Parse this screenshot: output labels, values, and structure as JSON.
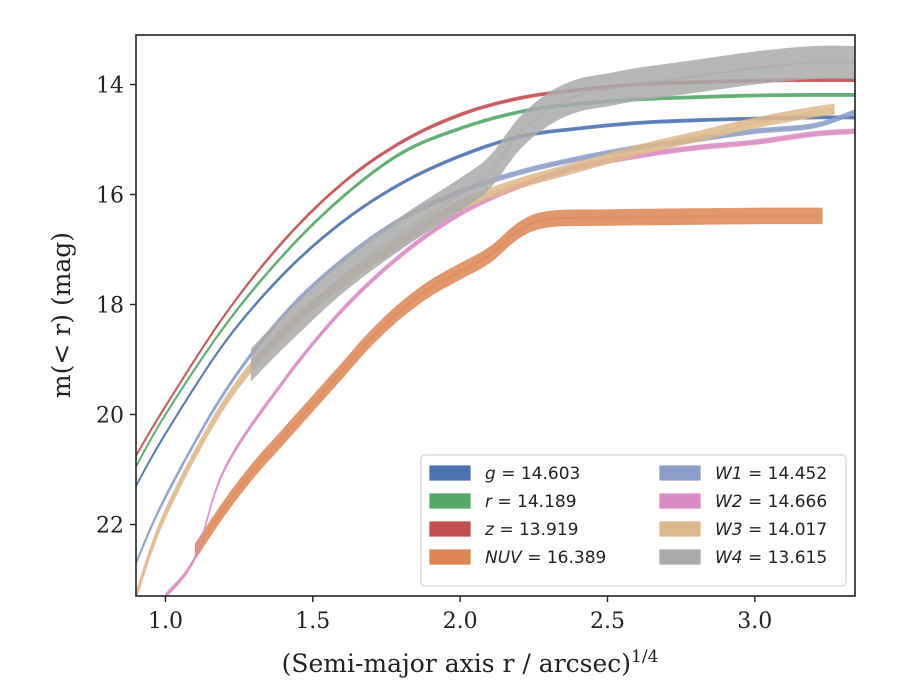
{
  "chart_data": {
    "type": "line",
    "xlabel": "(Semi-major axis r / arcsec)",
    "xlabel_exponent": "1/4",
    "ylabel": "m(< r) (mag)",
    "xlim": [
      0.9,
      3.34
    ],
    "ylim": [
      23.3,
      13.1
    ],
    "y_inverted": true,
    "x_ticks": [
      {
        "value": 1.0,
        "label": "1.0"
      },
      {
        "value": 1.5,
        "label": "1.5"
      },
      {
        "value": 2.0,
        "label": "2.0"
      },
      {
        "value": 2.5,
        "label": "2.5"
      },
      {
        "value": 3.0,
        "label": "3.0"
      }
    ],
    "y_ticks": [
      {
        "value": 14,
        "label": "14"
      },
      {
        "value": 16,
        "label": "16"
      },
      {
        "value": 18,
        "label": "18"
      },
      {
        "value": 20,
        "label": "20"
      },
      {
        "value": 22,
        "label": "22"
      }
    ],
    "grid": false,
    "legend_position": "lower-right",
    "series": [
      {
        "key": "g",
        "symbol": "g",
        "value": "14.603",
        "color": "#4c72b0",
        "band_width": 0.07,
        "x": [
          0.9,
          1.0,
          1.2,
          1.4,
          1.6,
          1.8,
          2.0,
          2.2,
          2.4,
          2.6,
          2.8,
          3.0,
          3.2,
          3.34
        ],
        "y": [
          21.3,
          20.35,
          18.7,
          17.45,
          16.5,
          15.8,
          15.3,
          14.95,
          14.8,
          14.7,
          14.65,
          14.62,
          14.6,
          14.6
        ]
      },
      {
        "key": "r",
        "symbol": "r",
        "value": "14.189",
        "color": "#55a868",
        "band_width": 0.07,
        "x": [
          0.9,
          1.0,
          1.2,
          1.4,
          1.6,
          1.8,
          2.0,
          2.2,
          2.4,
          2.6,
          2.8,
          3.0,
          3.2,
          3.34
        ],
        "y": [
          20.95,
          20.0,
          18.4,
          17.1,
          16.05,
          15.25,
          14.8,
          14.5,
          14.35,
          14.27,
          14.23,
          14.2,
          14.19,
          14.19
        ]
      },
      {
        "key": "z",
        "symbol": "z",
        "value": "13.919",
        "color": "#c44e52",
        "band_width": 0.07,
        "x": [
          0.9,
          1.0,
          1.2,
          1.4,
          1.6,
          1.8,
          2.0,
          2.2,
          2.4,
          2.6,
          2.8,
          3.0,
          3.2,
          3.34
        ],
        "y": [
          20.75,
          19.85,
          18.2,
          16.85,
          15.8,
          15.05,
          14.55,
          14.25,
          14.1,
          14.0,
          13.96,
          13.93,
          13.92,
          13.92
        ]
      },
      {
        "key": "NUV",
        "symbol": "NUV",
        "value": "16.389",
        "color": "#dd8452",
        "band_width": 0.3,
        "x": [
          1.1,
          1.2,
          1.3,
          1.4,
          1.5,
          1.6,
          1.7,
          1.8,
          1.9,
          2.0,
          2.1,
          2.2,
          2.3,
          2.5,
          2.8,
          3.0,
          3.23
        ],
        "y": [
          22.5,
          21.7,
          21.0,
          20.4,
          19.8,
          19.2,
          18.6,
          18.1,
          17.7,
          17.4,
          17.1,
          16.65,
          16.45,
          16.42,
          16.4,
          16.39,
          16.39
        ]
      },
      {
        "key": "W1",
        "symbol": "W1",
        "value": "14.452",
        "color": "#8c9dc8",
        "band_width": 0.1,
        "x": [
          0.9,
          1.0,
          1.2,
          1.4,
          1.6,
          1.8,
          2.0,
          2.2,
          2.4,
          2.6,
          2.8,
          3.0,
          3.2,
          3.34
        ],
        "y": [
          22.7,
          21.5,
          19.6,
          18.2,
          17.2,
          16.45,
          15.95,
          15.6,
          15.35,
          15.15,
          15.0,
          14.85,
          14.75,
          14.5
        ]
      },
      {
        "key": "W2",
        "symbol": "W2",
        "value": "14.666",
        "color": "#da8bc3",
        "band_width": 0.1,
        "x": [
          1.0,
          1.1,
          1.2,
          1.4,
          1.6,
          1.8,
          2.0,
          2.2,
          2.4,
          2.6,
          2.8,
          3.0,
          3.2,
          3.34
        ],
        "y": [
          23.3,
          22.6,
          21.0,
          19.4,
          18.1,
          17.1,
          16.35,
          15.85,
          15.5,
          15.3,
          15.15,
          15.05,
          14.9,
          14.85
        ]
      },
      {
        "key": "W3",
        "symbol": "W3",
        "value": "14.017",
        "color": "#ddb88a",
        "band_width": 0.2,
        "x": [
          0.9,
          1.0,
          1.2,
          1.4,
          1.6,
          1.8,
          2.0,
          2.2,
          2.4,
          2.6,
          2.8,
          3.0,
          3.2,
          3.27
        ],
        "y": [
          23.3,
          21.8,
          19.8,
          18.5,
          17.6,
          16.85,
          16.2,
          15.8,
          15.5,
          15.2,
          14.95,
          14.7,
          14.5,
          14.45
        ]
      },
      {
        "key": "W4",
        "symbol": "W4",
        "value": "13.615",
        "color": "#aaaaaa",
        "band_width": 0.6,
        "x": [
          1.29,
          1.4,
          1.6,
          1.8,
          2.0,
          2.1,
          2.2,
          2.3,
          2.4,
          2.5,
          2.6,
          2.8,
          3.0,
          3.2,
          3.34
        ],
        "y": [
          19.1,
          18.5,
          17.5,
          16.7,
          16.0,
          15.6,
          14.9,
          14.45,
          14.2,
          14.1,
          14.0,
          13.85,
          13.7,
          13.6,
          13.6
        ]
      }
    ]
  }
}
